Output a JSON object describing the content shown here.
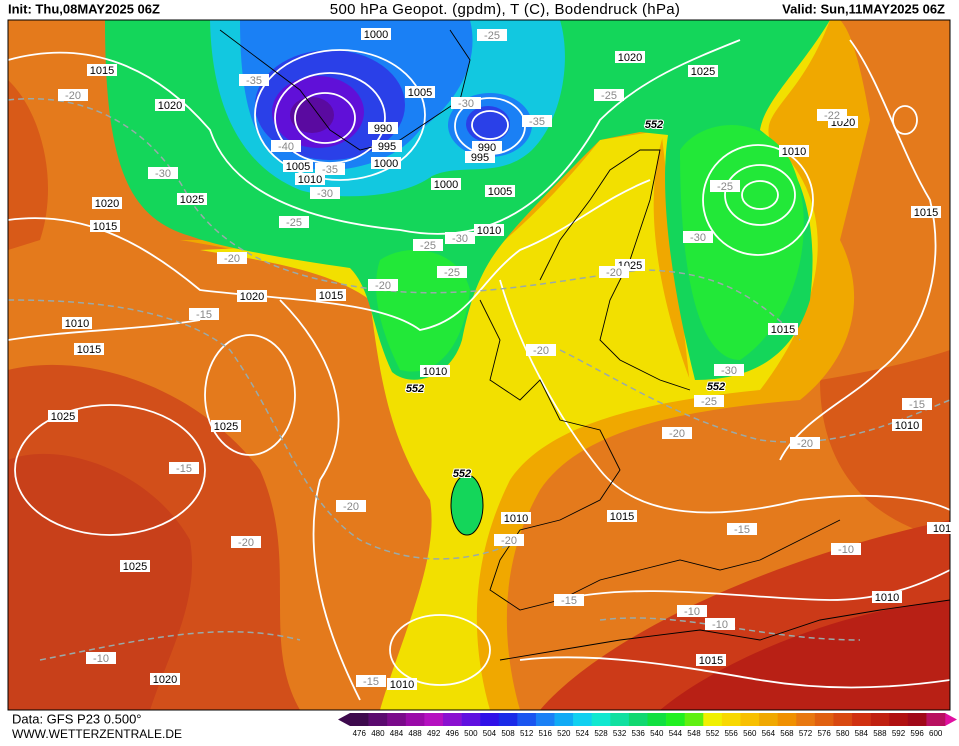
{
  "header": {
    "init": "Init: Thu,08MAY2025 06Z",
    "title": "500 hPa Geopot. (gpdm), T (C), Bodendruck (hPa)",
    "valid": "Valid: Sun,11MAY2025 06Z"
  },
  "footer": {
    "data": "Data: GFS P23 0.500°",
    "site": "WWW.WETTERZENTRALE.DE"
  },
  "colorbar": {
    "ticks": [
      476,
      480,
      484,
      488,
      492,
      496,
      500,
      504,
      508,
      512,
      516,
      520,
      524,
      528,
      532,
      536,
      540,
      544,
      548,
      552,
      556,
      560,
      564,
      568,
      572,
      576,
      580,
      584,
      588,
      592,
      596,
      600
    ],
    "colors": [
      "#3d0a4d",
      "#5a0a6e",
      "#7a0a8a",
      "#9a0aa8",
      "#b510c0",
      "#8a10d0",
      "#6010e0",
      "#3010e8",
      "#1a2ae8",
      "#1a55f0",
      "#1a80f5",
      "#10aaf5",
      "#10d0f0",
      "#10e8d0",
      "#10e0a0",
      "#10d870",
      "#10e040",
      "#20f020",
      "#60f010",
      "#f0f000",
      "#f8d800",
      "#f8c000",
      "#f0a800",
      "#f09000",
      "#e87810",
      "#e06010",
      "#d84810",
      "#d03010",
      "#c02010",
      "#b01010",
      "#a00818",
      "#b81060"
    ]
  },
  "pressure_labels": [
    1000,
    1015,
    1020,
    1005,
    990,
    995,
    1000,
    1005,
    1010,
    1000,
    1005,
    1010,
    990,
    995,
    1020,
    1025,
    1020,
    1010,
    1015,
    1020,
    1025,
    1015,
    1020,
    1015,
    1010,
    1015,
    1025,
    1015,
    1010,
    1025,
    1025,
    1010,
    1010,
    1015,
    1025,
    1010,
    1015,
    1020,
    1010,
    101
  ],
  "temperature_labels": [
    -25,
    -35,
    -20,
    -30,
    -25,
    -35,
    -40,
    -35,
    -30,
    -30,
    -25,
    -22,
    -25,
    -30,
    -25,
    -30,
    -25,
    -20,
    -20,
    -20,
    -15,
    -20,
    -30,
    -25,
    -20,
    -20,
    -15,
    -15,
    -20,
    -20,
    -15,
    -20,
    -10,
    -15,
    -10,
    -10,
    -10,
    -15
  ],
  "geopotential_labels": [
    552,
    552,
    552,
    552
  ]
}
